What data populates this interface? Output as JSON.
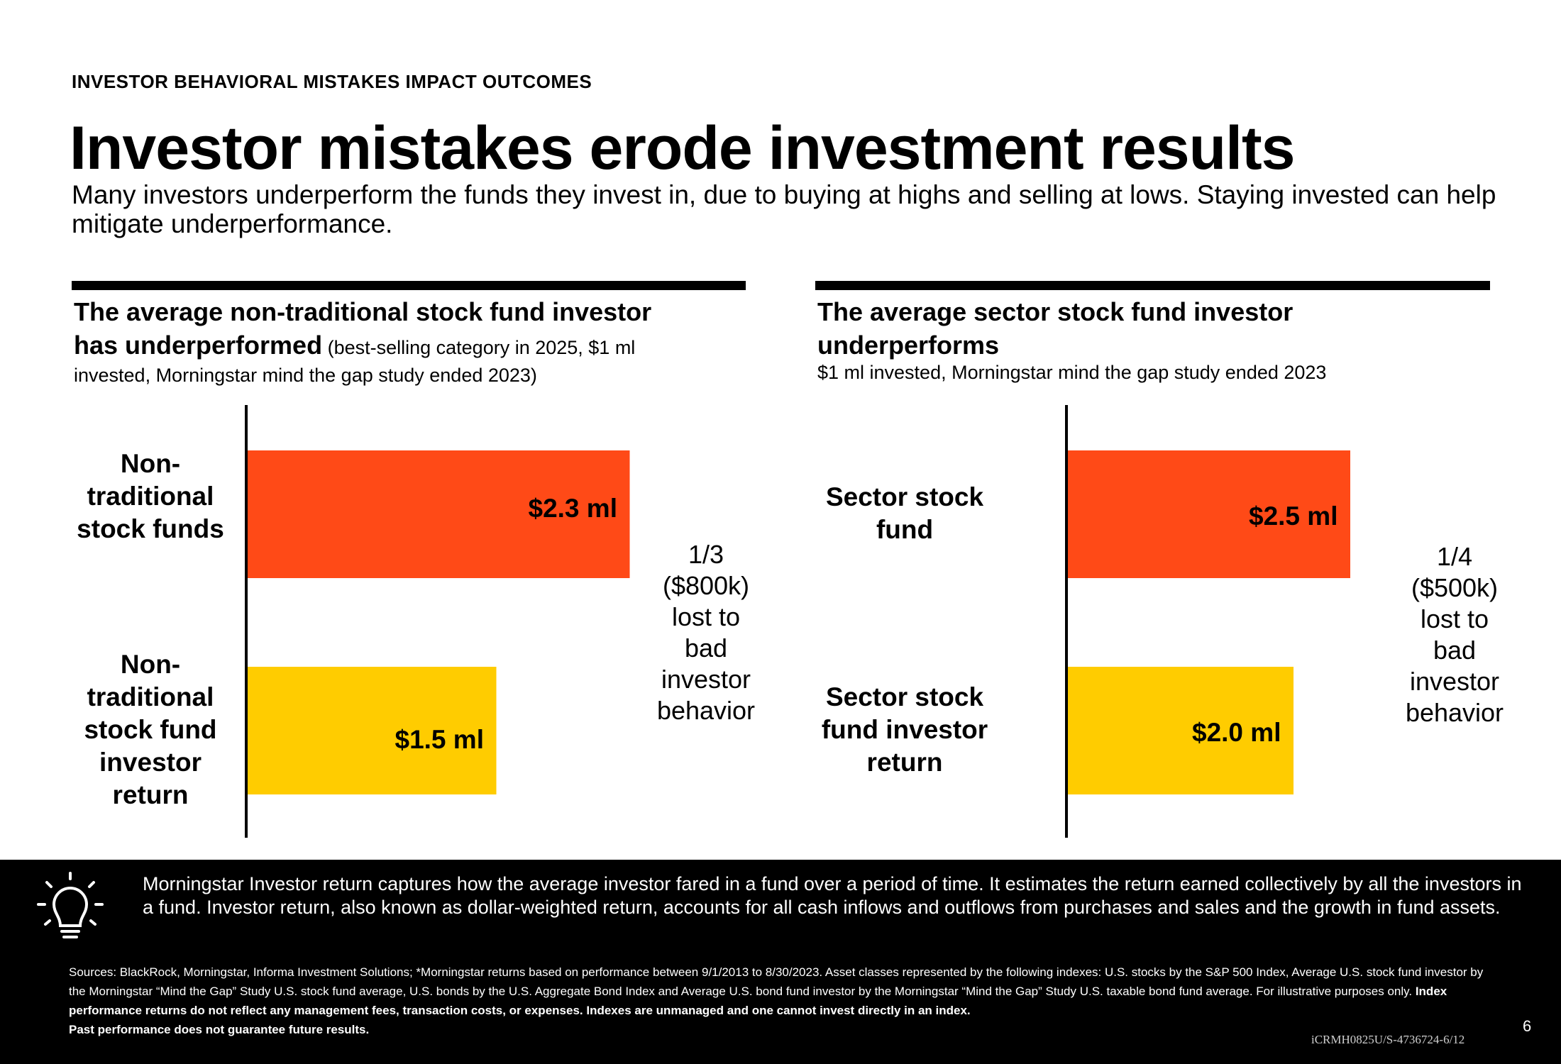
{
  "header": {
    "eyebrow": "INVESTOR BEHAVIORAL MISTAKES IMPACT OUTCOMES",
    "title": "Investor mistakes erode investment results",
    "subtitle": "Many investors underperform the funds they invest in, due to buying at highs and selling at lows. Staying invested can help mitigate underperformance."
  },
  "panels": [
    {
      "title_line1": "The average non-traditional stock fund investor",
      "title_line2": "has underperformed",
      "title_note": " (best-selling category in 2025, $1 ml",
      "subtitle": "invested, Morningstar mind the gap study ended 2023)"
    },
    {
      "title_line1": "The average sector stock fund investor",
      "title_line2": "underperforms",
      "title_note": "",
      "subtitle": "$1 ml invested, Morningstar mind the gap study ended 2023"
    }
  ],
  "chart_data": [
    {
      "type": "bar",
      "orientation": "horizontal",
      "categories": [
        "Non-traditional stock funds",
        "Non-traditional stock fund investor return"
      ],
      "values": [
        2.3,
        1.5
      ],
      "value_labels": [
        "$2.3 ml",
        "$1.5 ml"
      ],
      "unit": "$ ml",
      "xlim": [
        0,
        3.5
      ],
      "colors": [
        "#FF4A17",
        "#FFCC00"
      ],
      "annotation": [
        "1/3",
        "($800k)",
        "lost to",
        "bad",
        "investor",
        "behavior"
      ]
    },
    {
      "type": "bar",
      "orientation": "horizontal",
      "categories": [
        "Sector stock fund",
        "Sector stock fund investor return"
      ],
      "values": [
        2.5,
        2.0
      ],
      "value_labels": [
        "$2.5 ml",
        "$2.0 ml"
      ],
      "unit": "$ ml",
      "xlim": [
        0,
        3.5
      ],
      "colors": [
        "#FF4A17",
        "#FFCC00"
      ],
      "annotation": [
        "1/4",
        "($500k)",
        "lost to",
        "bad",
        "investor",
        "behavior"
      ]
    }
  ],
  "footer": {
    "icon": "lightbulb-icon",
    "text": "Morningstar Investor return captures how the average investor fared in a fund over a period of time. It estimates the return earned collectively by all the investors in a fund. Investor return, also known as dollar-weighted return, accounts for all cash inflows and outflows from purchases and sales and the growth in fund assets.",
    "sources": "Sources: BlackRock, Morningstar, Informa Investment Solutions; *Morningstar returns based on performance between 9/1/2013 to 8/30/2023. Asset classes represented by the following indexes:  U.S. stocks by the S&P 500 Index, Average U.S. stock fund investor by the Morningstar “Mind the Gap” Study U.S. stock fund average, U.S. bonds by the  U.S. Aggregate Bond Index and Average U.S. bond fund investor by the Morningstar “Mind the Gap” Study U.S. taxable bond fund average.  For illustrative purposes only. ",
    "sources_bold1": "Index performance returns do not reflect any management fees, transaction costs, or expenses. Indexes are unmanaged and one cannot invest directly in an index.",
    "sources_bold2": "Past performance does not guarantee future results.",
    "page_number": "6",
    "doc_code": "iCRMH0825U/S-4736724-6/12"
  }
}
